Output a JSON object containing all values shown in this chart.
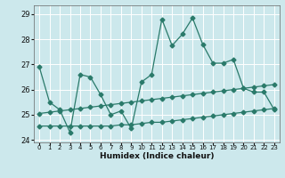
{
  "title": "",
  "xlabel": "Humidex (Indice chaleur)",
  "background_color": "#cce8ec",
  "grid_color": "#ffffff",
  "line_color": "#2a7a6a",
  "xlim": [
    -0.5,
    23.5
  ],
  "ylim": [
    23.9,
    29.35
  ],
  "yticks": [
    24,
    25,
    26,
    27,
    28,
    29
  ],
  "xticks": [
    0,
    1,
    2,
    3,
    4,
    5,
    6,
    7,
    8,
    9,
    10,
    11,
    12,
    13,
    14,
    15,
    16,
    17,
    18,
    19,
    20,
    21,
    22,
    23
  ],
  "series1_x": [
    0,
    1,
    2,
    3,
    4,
    5,
    6,
    7,
    8,
    9,
    10,
    11,
    12,
    13,
    14,
    15,
    16,
    17,
    18,
    19,
    20,
    21,
    22,
    23
  ],
  "series1_y": [
    26.9,
    25.5,
    25.2,
    24.3,
    26.6,
    26.5,
    25.8,
    25.0,
    25.15,
    24.45,
    26.3,
    26.6,
    28.8,
    27.75,
    28.2,
    28.85,
    27.8,
    27.05,
    27.05,
    27.2,
    26.05,
    25.9,
    25.9,
    25.2
  ],
  "series2_x": [
    0,
    1,
    2,
    3,
    4,
    5,
    6,
    7,
    8,
    9,
    10,
    11,
    12,
    13,
    14,
    15,
    16,
    17,
    18,
    19,
    20,
    21,
    22,
    23
  ],
  "series2_y": [
    25.05,
    25.1,
    25.15,
    25.2,
    25.25,
    25.3,
    25.35,
    25.4,
    25.45,
    25.5,
    25.55,
    25.6,
    25.65,
    25.7,
    25.75,
    25.8,
    25.85,
    25.9,
    25.95,
    26.0,
    26.05,
    26.1,
    26.15,
    26.2
  ],
  "series3_x": [
    0,
    1,
    2,
    3,
    4,
    5,
    6,
    7,
    8,
    9,
    10,
    11,
    12,
    13,
    14,
    15,
    16,
    17,
    18,
    19,
    20,
    21,
    22,
    23
  ],
  "series3_y": [
    24.55,
    24.55,
    24.55,
    24.55,
    24.55,
    24.55,
    24.55,
    24.55,
    24.6,
    24.6,
    24.65,
    24.7,
    24.7,
    24.75,
    24.8,
    24.85,
    24.9,
    24.95,
    25.0,
    25.05,
    25.1,
    25.15,
    25.2,
    25.25
  ]
}
